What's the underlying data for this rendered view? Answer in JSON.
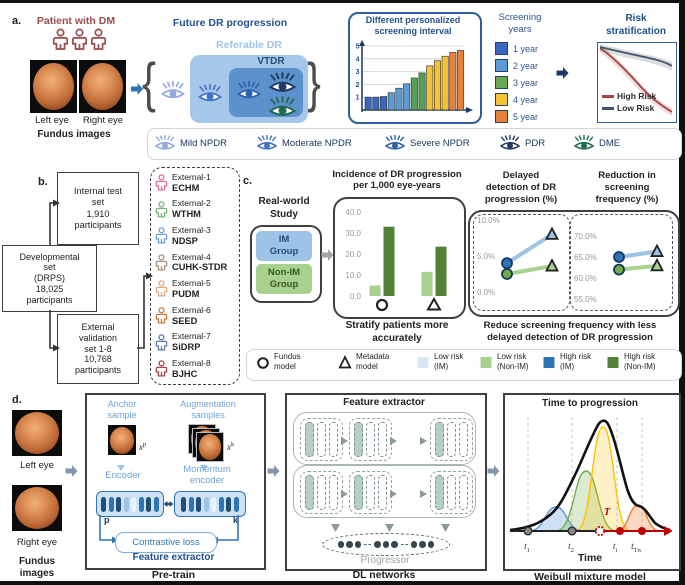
{
  "panel_a": {
    "label": "a.",
    "patient_title": "Patient with DM",
    "left_eye_label": "Left eye",
    "right_eye_label": "Right eye",
    "fundus_caption": "Fundus images",
    "future_title": "Future DR progression",
    "referable_label": "Referable DR",
    "vtdr_label": "VTDR",
    "interval_chart": {
      "title": [
        "Different personalized",
        "screening interval"
      ],
      "yticks": [
        5,
        4,
        3,
        2,
        1
      ],
      "bars": [
        {
          "v": 1.0,
          "color": "#3a66c0"
        },
        {
          "v": 1.0,
          "color": "#3a66c0"
        },
        {
          "v": 1.05,
          "color": "#3a66c0"
        },
        {
          "v": 1.35,
          "color": "#5b9bd5"
        },
        {
          "v": 1.7,
          "color": "#5b9bd5"
        },
        {
          "v": 2.05,
          "color": "#5b9bd5"
        },
        {
          "v": 2.5,
          "color": "#55a055"
        },
        {
          "v": 2.9,
          "color": "#55a055"
        },
        {
          "v": 3.45,
          "color": "#f5c232"
        },
        {
          "v": 3.85,
          "color": "#f5c232"
        },
        {
          "v": 4.2,
          "color": "#f5c232"
        },
        {
          "v": 4.5,
          "color": "#e8823a"
        },
        {
          "v": 4.65,
          "color": "#e8823a"
        }
      ]
    },
    "screening_years": {
      "title": [
        "Screening",
        "years"
      ],
      "items": [
        {
          "label": "1 year",
          "color": "#3a66c0"
        },
        {
          "label": "2 year",
          "color": "#5b9bd5"
        },
        {
          "label": "3 year",
          "color": "#6aa84f"
        },
        {
          "label": "4 year",
          "color": "#f5c232"
        },
        {
          "label": "5 year",
          "color": "#e8823a"
        }
      ]
    },
    "risk_strat": {
      "title": [
        "Risk",
        "stratification"
      ],
      "legend": [
        {
          "label": "High Risk",
          "color": "#a04545"
        },
        {
          "label": "Low Risk",
          "color": "#44546a"
        }
      ]
    },
    "severity_legend": [
      {
        "label": "Mild NPDR",
        "color": "#93a9e0"
      },
      {
        "label": "Moderate NPDR",
        "color": "#4472c4"
      },
      {
        "label": "Severe NPDR",
        "color": "#2f5fa8"
      },
      {
        "label": "PDR",
        "color": "#203a64"
      },
      {
        "label": "DME",
        "color": "#1e6b50"
      }
    ]
  },
  "panel_b": {
    "label": "b.",
    "internal_box": [
      "Internal test",
      "set",
      "1,910",
      "participants"
    ],
    "developmental_box": [
      "Developmental",
      "set",
      "(DRPS)",
      "18,025",
      "participants"
    ],
    "external_box": [
      "External",
      "validation",
      "set 1-8",
      "10,768",
      "participants"
    ],
    "datasets": [
      {
        "name": "External-1",
        "acronym": "ECHM",
        "color": "#e07090"
      },
      {
        "name": "External-2",
        "acronym": "WTHM",
        "color": "#74b874"
      },
      {
        "name": "External-3",
        "acronym": "NDSP",
        "color": "#6f9fd8"
      },
      {
        "name": "External-4",
        "acronym": "CUHK-STDR",
        "color": "#a39482"
      },
      {
        "name": "External-5",
        "acronym": "PUDM",
        "color": "#d8aa80"
      },
      {
        "name": "External-6",
        "acronym": "SEED",
        "color": "#c97a3a"
      },
      {
        "name": "External-7",
        "acronym": "SiDRP",
        "color": "#5a7ca6"
      },
      {
        "name": "External-8",
        "acronym": "BJHC",
        "color": "#a84444"
      }
    ]
  },
  "panel_c": {
    "label": "c.",
    "study_title": [
      "Real-world",
      "Study"
    ],
    "im_group": [
      "IM",
      "Group"
    ],
    "non_im_group": [
      "Non-IM",
      "Group"
    ],
    "incidence": {
      "title": [
        "Incidence of DR progression",
        "per 1,000 eye-years"
      ],
      "yticks": [
        "40.0",
        "30.0",
        "20.0",
        "10.0",
        "0.0"
      ],
      "bar_colors": {
        "low": "#a9d18e",
        "high": "#538135"
      },
      "groups": [
        {
          "marker": "circle",
          "low": 5,
          "high": 33
        },
        {
          "marker": "triangle",
          "low": 11.5,
          "high": 23.5
        }
      ]
    },
    "caption1": [
      "Stratify patients more",
      "accurately"
    ],
    "delayed": {
      "title": [
        "Delayed",
        "detection of DR",
        "progression (%)"
      ],
      "yticks": [
        "10.0%",
        "5.0%",
        "0.0%"
      ],
      "series": [
        {
          "name": "IM",
          "line": "#9dc3e6",
          "fill": "#2e75b6",
          "circle": 4.0,
          "triangle": 8.0
        },
        {
          "name": "Non-IM",
          "line": "#a9d18e",
          "fill": "#70ad47",
          "circle": 2.5,
          "triangle": 3.6
        }
      ]
    },
    "reduction": {
      "title": [
        "Reduction in",
        "screening",
        "frequency (%)"
      ],
      "yticks": [
        "70.0%",
        "65.0%",
        "60.0%",
        "55.0%"
      ],
      "series": [
        {
          "name": "IM",
          "line": "#9dc3e6",
          "fill": "#2e75b6",
          "circle": 65.0,
          "triangle": 66.3
        },
        {
          "name": "Non-IM",
          "line": "#a9d18e",
          "fill": "#70ad47",
          "circle": 62.0,
          "triangle": 62.9
        }
      ]
    },
    "caption2": [
      "Reduce screening frequency with less",
      "delayed detection of DR progression"
    ],
    "legend": [
      {
        "symbol": "circle",
        "lines": [
          "Fundus",
          "model"
        ]
      },
      {
        "symbol": "triangle",
        "lines": [
          "Metadata",
          "model"
        ]
      },
      {
        "symbol": "square",
        "color": "#dae6f5",
        "lines": [
          "Low risk",
          "(IM)"
        ]
      },
      {
        "symbol": "square",
        "color": "#a9d18e",
        "lines": [
          "Low risk",
          "(Non-IM)"
        ]
      },
      {
        "symbol": "square",
        "color": "#2e75b6",
        "lines": [
          "High risk",
          "(IM)"
        ]
      },
      {
        "symbol": "square",
        "color": "#538135",
        "lines": [
          "High risk",
          "(Non-IM)"
        ]
      }
    ]
  },
  "panel_d": {
    "label": "d.",
    "left_eye_label": "Left eye",
    "right_eye_label": "Right eye",
    "fundus_caption": [
      "Fundus",
      "images"
    ],
    "pretrain": {
      "anchor_label": [
        "Anchor",
        "sample"
      ],
      "aug_label": [
        "Augmentation",
        "samples"
      ],
      "x_base": "x",
      "x_p_sup": "p",
      "x_k_sup": "k",
      "encoder_label": "Encoder",
      "momentum_label": [
        "Momentum",
        "encoder"
      ],
      "p_label": "p",
      "k_label": "k",
      "contrastive_label": "Contrastive loss",
      "feature_extractor_label": "Feature extractor",
      "caption": "Pre-train"
    },
    "dl": {
      "title": "Feature extractor",
      "progressor_label": "Progressor",
      "caption": "DL networks"
    },
    "weibull": {
      "title": "Time to progression",
      "t_label": "T",
      "xticks": [
        {
          "base": "t",
          "sub": "1"
        },
        {
          "base": "t",
          "sub": "2"
        },
        {
          "base": "t",
          "sub": "i"
        },
        {
          "base": "t",
          "sub": "Tn"
        }
      ],
      "xlabel": "Time",
      "caption": "Weibull mixture model"
    }
  },
  "chart_data": [
    {
      "type": "bar",
      "title": "Different personalized screening interval",
      "ylabel": "",
      "ylim": [
        0,
        5
      ],
      "values": [
        1,
        1,
        1.05,
        1.35,
        1.7,
        2.05,
        2.5,
        2.9,
        3.45,
        3.85,
        4.2,
        4.5,
        4.65
      ],
      "color_meaning": {
        "1 year": "#3a66c0",
        "2 year": "#5b9bd5",
        "3 year": "#6aa84f",
        "4 year": "#f5c232",
        "5 year": "#e8823a"
      }
    },
    {
      "type": "line",
      "title": "Risk stratification",
      "series": [
        {
          "name": "High Risk",
          "trend": "steep decline"
        },
        {
          "name": "Low Risk",
          "trend": "gradual decline"
        }
      ]
    },
    {
      "type": "bar",
      "title": "Incidence of DR progression per 1,000 eye-years",
      "ylim": [
        0,
        40
      ],
      "categories": [
        "Fundus model",
        "Metadata model"
      ],
      "series": [
        {
          "name": "Low risk",
          "values": [
            5,
            11.5
          ]
        },
        {
          "name": "High risk",
          "values": [
            33,
            23.5
          ]
        }
      ]
    },
    {
      "type": "line",
      "title": "Delayed detection of DR progression (%)",
      "ylim": [
        0,
        10
      ],
      "categories": [
        "Fundus model",
        "Metadata model"
      ],
      "series": [
        {
          "name": "IM",
          "values": [
            4.0,
            8.0
          ]
        },
        {
          "name": "Non-IM",
          "values": [
            2.5,
            3.6
          ]
        }
      ]
    },
    {
      "type": "line",
      "title": "Reduction in screening frequency (%)",
      "ylim": [
        55,
        70
      ],
      "categories": [
        "Fundus model",
        "Metadata model"
      ],
      "series": [
        {
          "name": "IM",
          "values": [
            65.0,
            66.3
          ]
        },
        {
          "name": "Non-IM",
          "values": [
            62.0,
            62.9
          ]
        }
      ]
    }
  ]
}
